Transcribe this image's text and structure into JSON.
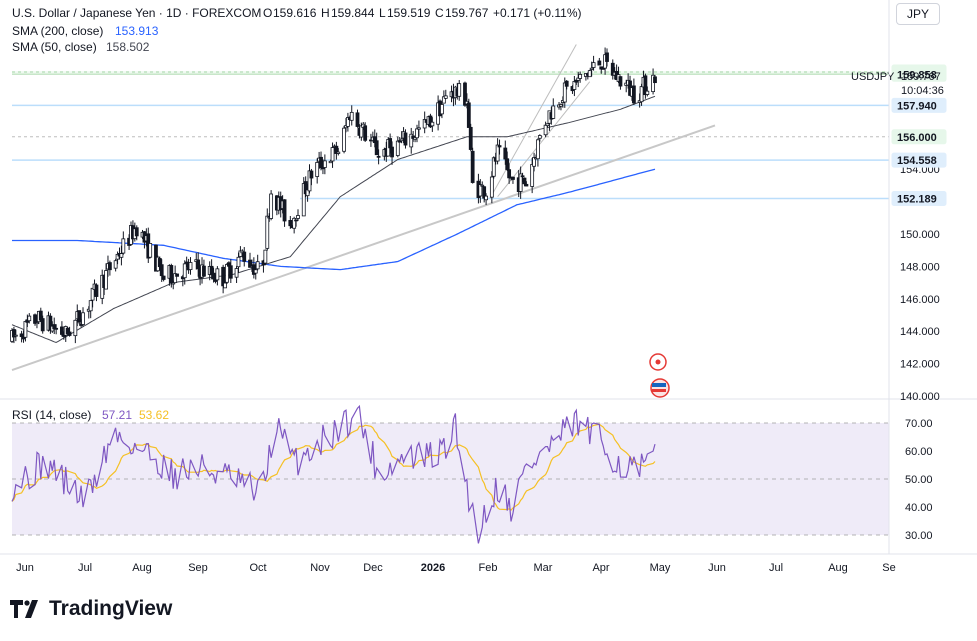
{
  "header": {
    "symbol": "U.S. Dollar / Japanese Yen · 1D · FOREXCOM",
    "o_label": "O",
    "o": "159.616",
    "h_label": "H",
    "h": "159.844",
    "l_label": "L",
    "l": "159.519",
    "c_label": "C",
    "c": "159.767",
    "change": "+0.171 (+0.11%)",
    "sma200_label": "SMA (200, close)",
    "sma200_value": "153.913",
    "sma50_label": "SMA (50, close)",
    "sma50_value": "158.502",
    "currency": "JPY"
  },
  "price_axis": {
    "ticks": [
      "160.000",
      "158.000",
      "156.000",
      "154.000",
      "152.000",
      "150.000",
      "148.000",
      "146.000",
      "144.000",
      "142.000",
      "140.000"
    ],
    "ylim": [
      140.0,
      162.0
    ]
  },
  "price_tags": [
    {
      "value": "160.000",
      "bg": "#e6f7ea",
      "border": "#e6f7ea",
      "color": "#131722"
    },
    {
      "value": "159.858",
      "bg": "#e6f7ea",
      "border": "#e6f7ea",
      "color": "#131722"
    },
    {
      "value": "157.940",
      "bg": "#dfeefc",
      "border": "#dfeefc",
      "color": "#131722"
    },
    {
      "value": "156.000",
      "bg": "#e6f7ea",
      "border": "#e6f7ea",
      "color": "#131722"
    },
    {
      "value": "154.558",
      "bg": "#dfeefc",
      "border": "#dfeefc",
      "color": "#131722"
    },
    {
      "value": "152.189",
      "bg": "#dfeefc",
      "border": "#dfeefc",
      "color": "#131722"
    }
  ],
  "last_price": {
    "symbol": "USDJPY",
    "value": "159.767",
    "countdown": "10:04:36"
  },
  "time_axis": [
    "Jun",
    "Jul",
    "Aug",
    "Sep",
    "Oct",
    "Nov",
    "Dec",
    "2026",
    "Feb",
    "Mar",
    "Apr",
    "May",
    "Jun",
    "Jul",
    "Aug",
    "Se"
  ],
  "rsi": {
    "label": "RSI (14, close)",
    "value": "57.21",
    "ma_value": "53.62",
    "ticks": [
      "70.00",
      "60.00",
      "50.00",
      "40.00",
      "30.00"
    ],
    "ylim": [
      25,
      77
    ],
    "color": "#7e57c2",
    "ma_color": "#f5c024"
  },
  "colors": {
    "up": "#131722",
    "down": "#131722",
    "sma200": "#2962ff",
    "sma50": "#434651",
    "trend": "#c8c8c8",
    "accent_red": "#e53935"
  },
  "logo_text": "TradingView",
  "chart_data": {
    "type": "candlestick",
    "title": "U.S. Dollar / Japanese Yen · 1D · FOREXCOM",
    "x_range": [
      "2025-05-28",
      "2026-04-28"
    ],
    "price_anchors": [
      [
        "2025-05-28",
        143.5
      ],
      [
        "2025-06-10",
        144.8
      ],
      [
        "2025-06-25",
        143.8
      ],
      [
        "2025-07-05",
        145.3
      ],
      [
        "2025-07-20",
        148.3
      ],
      [
        "2025-08-01",
        150.5
      ],
      [
        "2025-08-15",
        147.3
      ],
      [
        "2025-08-30",
        148.0
      ],
      [
        "2025-09-15",
        147.3
      ],
      [
        "2025-09-25",
        148.8
      ],
      [
        "2025-10-05",
        147.5
      ],
      [
        "2025-10-10",
        152.7
      ],
      [
        "2025-10-20",
        150.6
      ],
      [
        "2025-11-01",
        154.0
      ],
      [
        "2025-11-15",
        155.3
      ],
      [
        "2025-11-20",
        157.5
      ],
      [
        "2025-12-05",
        155.0
      ],
      [
        "2025-12-15",
        155.5
      ],
      [
        "2025-12-31",
        156.8
      ],
      [
        "2026-01-12",
        158.9
      ],
      [
        "2026-01-20",
        158.4
      ],
      [
        "2026-01-23",
        153.0
      ],
      [
        "2026-01-30",
        152.7
      ],
      [
        "2026-02-05",
        155.0
      ],
      [
        "2026-02-12",
        153.3
      ],
      [
        "2026-02-20",
        153.2
      ],
      [
        "2026-03-01",
        156.8
      ],
      [
        "2026-03-10",
        158.6
      ],
      [
        "2026-03-20",
        159.5
      ],
      [
        "2026-03-31",
        160.7
      ],
      [
        "2026-04-10",
        159.5
      ],
      [
        "2026-04-18",
        158.6
      ],
      [
        "2026-04-28",
        159.77
      ]
    ],
    "sma200_anchors": [
      [
        "2025-05-28",
        149.6
      ],
      [
        "2025-07-01",
        149.6
      ],
      [
        "2025-08-15",
        149.3
      ],
      [
        "2025-09-15",
        148.5
      ],
      [
        "2025-10-15",
        148.0
      ],
      [
        "2025-11-15",
        147.8
      ],
      [
        "2025-12-15",
        148.3
      ],
      [
        "2026-01-15",
        150.0
      ],
      [
        "2026-02-15",
        151.8
      ],
      [
        "2026-03-15",
        152.6
      ],
      [
        "2026-04-28",
        154.0
      ]
    ],
    "sma50_anchors": [
      [
        "2025-05-28",
        144.4
      ],
      [
        "2025-06-20",
        143.3
      ],
      [
        "2025-07-20",
        145.4
      ],
      [
        "2025-08-20",
        147.0
      ],
      [
        "2025-09-20",
        147.5
      ],
      [
        "2025-10-20",
        148.6
      ],
      [
        "2025-11-15",
        152.3
      ],
      [
        "2025-12-15",
        154.6
      ],
      [
        "2026-01-20",
        156.0
      ],
      [
        "2026-02-10",
        156.0
      ],
      [
        "2026-03-15",
        156.9
      ],
      [
        "2026-04-10",
        157.7
      ],
      [
        "2026-04-28",
        158.5
      ]
    ],
    "rsi_anchors": [
      [
        "2025-05-28",
        48
      ],
      [
        "2025-06-15",
        56
      ],
      [
        "2025-07-05",
        42
      ],
      [
        "2025-07-20",
        66
      ],
      [
        "2025-08-05",
        60
      ],
      [
        "2025-08-20",
        52
      ],
      [
        "2025-09-05",
        54
      ],
      [
        "2025-09-20",
        50
      ],
      [
        "2025-10-05",
        44
      ],
      [
        "2025-10-12",
        70
      ],
      [
        "2025-10-22",
        56
      ],
      [
        "2025-11-10",
        66
      ],
      [
        "2025-11-24",
        74
      ],
      [
        "2025-12-05",
        52
      ],
      [
        "2025-12-20",
        58
      ],
      [
        "2026-01-05",
        58
      ],
      [
        "2026-01-14",
        68
      ],
      [
        "2026-01-25",
        30
      ],
      [
        "2026-02-05",
        48
      ],
      [
        "2026-02-12",
        40
      ],
      [
        "2026-02-20",
        54
      ],
      [
        "2026-03-05",
        62
      ],
      [
        "2026-03-18",
        70
      ],
      [
        "2026-03-31",
        63
      ],
      [
        "2026-04-10",
        55
      ],
      [
        "2026-04-20",
        53
      ],
      [
        "2026-04-28",
        57
      ]
    ]
  }
}
